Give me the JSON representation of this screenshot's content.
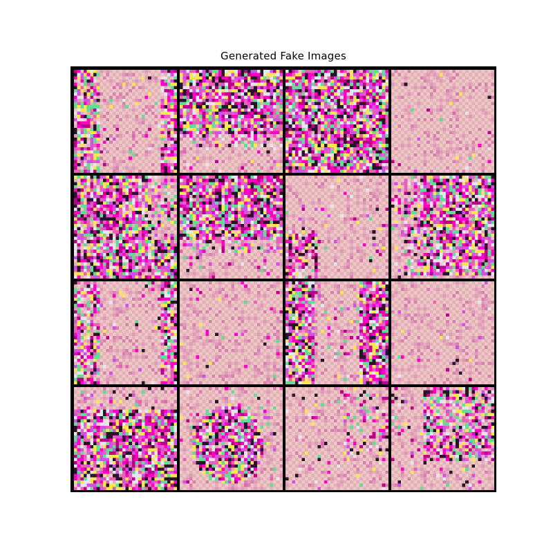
{
  "title": "Generated Fake Images",
  "grid": {
    "rows": 4,
    "cols": 4
  },
  "colors": {
    "background_tone": "#f2c6c8",
    "pattern_pink": "#ec5fb8",
    "pattern_magenta": "#c0008c",
    "separator": "#000000"
  },
  "tiles": [
    {
      "row": 0,
      "col": 0,
      "pattern": "side-columns"
    },
    {
      "row": 0,
      "col": 1,
      "pattern": "dense-top"
    },
    {
      "row": 0,
      "col": 2,
      "pattern": "dense-full"
    },
    {
      "row": 0,
      "col": 3,
      "pattern": "faint"
    },
    {
      "row": 1,
      "col": 0,
      "pattern": "dense-left-columns"
    },
    {
      "row": 1,
      "col": 1,
      "pattern": "dense-top"
    },
    {
      "row": 1,
      "col": 2,
      "pattern": "lower-left"
    },
    {
      "row": 1,
      "col": 3,
      "pattern": "dense-right"
    },
    {
      "row": 2,
      "col": 0,
      "pattern": "side-columns"
    },
    {
      "row": 2,
      "col": 1,
      "pattern": "faint"
    },
    {
      "row": 2,
      "col": 2,
      "pattern": "side-columns-strong"
    },
    {
      "row": 2,
      "col": 3,
      "pattern": "faint"
    },
    {
      "row": 3,
      "col": 0,
      "pattern": "dense-bottom"
    },
    {
      "row": 3,
      "col": 1,
      "pattern": "blob-left"
    },
    {
      "row": 3,
      "col": 2,
      "pattern": "faint-columns"
    },
    {
      "row": 3,
      "col": 3,
      "pattern": "right-columns"
    }
  ]
}
